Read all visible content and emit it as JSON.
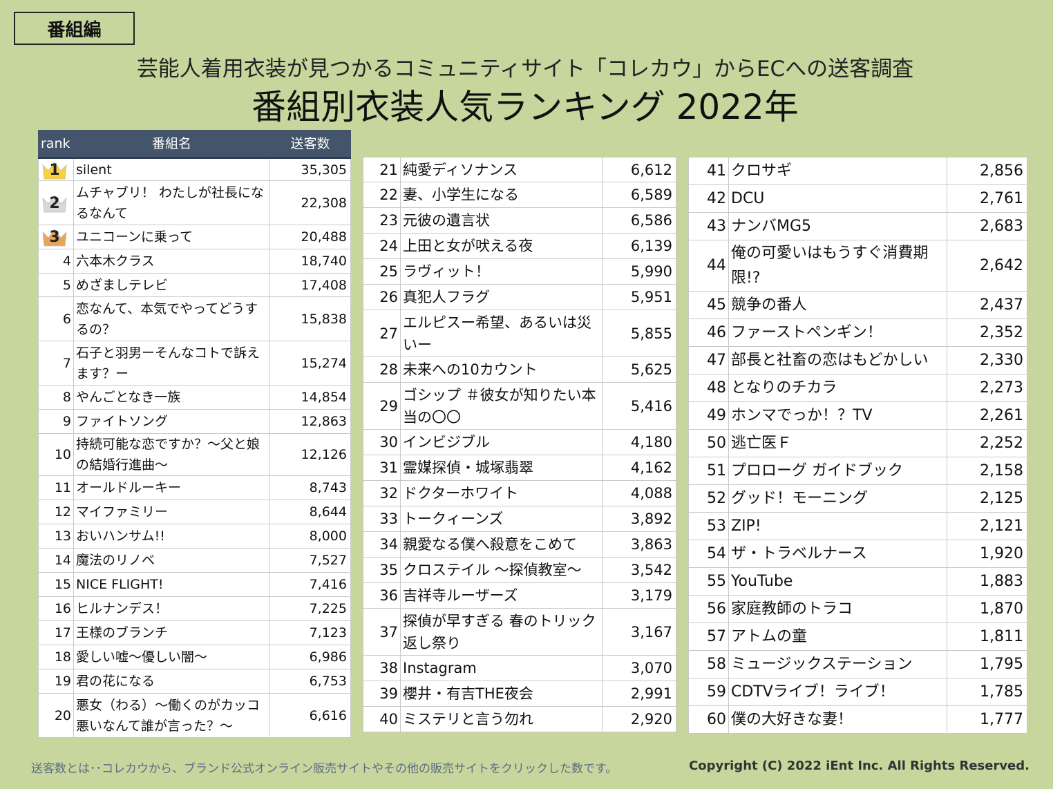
{
  "tag": "番組編",
  "subtitle": "芸能人着用衣装が見つかるコミュニティサイト「コレカウ」からECへの送客調査",
  "title": "番組別衣装人気ランキング 2022年",
  "headers": {
    "rank": "rank",
    "name": "番組名",
    "count": "送客数"
  },
  "medal_colors": {
    "gold": "#f7d23e",
    "silver": "#d8d8d8",
    "bronze": "#e9a45b"
  },
  "col1": [
    {
      "rank": "1",
      "name": "silent",
      "count": "35,305",
      "medal": "gold"
    },
    {
      "rank": "2",
      "name": "ムチャブリ！ わたしが社長になるなんて",
      "count": "22,308",
      "medal": "silver"
    },
    {
      "rank": "3",
      "name": "ユニコーンに乗って",
      "count": "20,488",
      "medal": "bronze"
    },
    {
      "rank": "4",
      "name": "六本木クラス",
      "count": "18,740"
    },
    {
      "rank": "5",
      "name": "めざましテレビ",
      "count": "17,408"
    },
    {
      "rank": "6",
      "name": "恋なんて、本気でやってどうするの？",
      "count": "15,838"
    },
    {
      "rank": "7",
      "name": "石子と羽男ーそんなコトで訴えます？ー",
      "count": "15,274"
    },
    {
      "rank": "8",
      "name": "やんごとなき一族",
      "count": "14,854"
    },
    {
      "rank": "9",
      "name": "ファイトソング",
      "count": "12,863"
    },
    {
      "rank": "10",
      "name": "持続可能な恋ですか？～父と娘の結婚行進曲～",
      "count": "12,126"
    },
    {
      "rank": "11",
      "name": "オールドルーキー",
      "count": "8,743"
    },
    {
      "rank": "12",
      "name": "マイファミリー",
      "count": "8,644"
    },
    {
      "rank": "13",
      "name": "おいハンサム!!",
      "count": "8,000"
    },
    {
      "rank": "14",
      "name": "魔法のリノベ",
      "count": "7,527"
    },
    {
      "rank": "15",
      "name": "NICE FLIGHT!",
      "count": "7,416"
    },
    {
      "rank": "16",
      "name": "ヒルナンデス！",
      "count": "7,225"
    },
    {
      "rank": "17",
      "name": "王様のブランチ",
      "count": "7,123"
    },
    {
      "rank": "18",
      "name": "愛しい嘘～優しい闇～",
      "count": "6,986"
    },
    {
      "rank": "19",
      "name": "君の花になる",
      "count": "6,753"
    },
    {
      "rank": "20",
      "name": "悪女（わる）～働くのがカッコ悪いなんて誰が言った？～",
      "count": "6,616"
    }
  ],
  "col2": [
    {
      "rank": "21",
      "name": "純愛ディソナンス",
      "count": "6,612"
    },
    {
      "rank": "22",
      "name": "妻、小学生になる",
      "count": "6,589"
    },
    {
      "rank": "23",
      "name": "元彼の遺言状",
      "count": "6,586"
    },
    {
      "rank": "24",
      "name": "上田と女が吠える夜",
      "count": "6,139"
    },
    {
      "rank": "25",
      "name": "ラヴィット！",
      "count": "5,990"
    },
    {
      "rank": "26",
      "name": "真犯人フラグ",
      "count": "5,951"
    },
    {
      "rank": "27",
      "name": "エルピスー希望、あるいは災いー",
      "count": "5,855"
    },
    {
      "rank": "28",
      "name": "未来への10カウント",
      "count": "5,625"
    },
    {
      "rank": "29",
      "name": "ゴシップ ＃彼女が知りたい本当の〇〇",
      "count": "5,416"
    },
    {
      "rank": "30",
      "name": "インビジブル",
      "count": "4,180"
    },
    {
      "rank": "31",
      "name": "霊媒探偵・城塚翡翠",
      "count": "4,162"
    },
    {
      "rank": "32",
      "name": "ドクターホワイト",
      "count": "4,088"
    },
    {
      "rank": "33",
      "name": "トークィーンズ",
      "count": "3,892"
    },
    {
      "rank": "34",
      "name": "親愛なる僕へ殺意をこめて",
      "count": "3,863"
    },
    {
      "rank": "35",
      "name": "クロステイル ～探偵教室～",
      "count": "3,542"
    },
    {
      "rank": "36",
      "name": "吉祥寺ルーザーズ",
      "count": "3,179"
    },
    {
      "rank": "37",
      "name": "探偵が早すぎる 春のトリック返し祭り",
      "count": "3,167"
    },
    {
      "rank": "38",
      "name": "Instagram",
      "count": "3,070"
    },
    {
      "rank": "39",
      "name": "櫻井・有吉THE夜会",
      "count": "2,991"
    },
    {
      "rank": "40",
      "name": "ミステリと言う勿れ",
      "count": "2,920"
    }
  ],
  "col3": [
    {
      "rank": "41",
      "name": "クロサギ",
      "count": "2,856"
    },
    {
      "rank": "42",
      "name": "DCU",
      "count": "2,761"
    },
    {
      "rank": "43",
      "name": "ナンバMG5",
      "count": "2,683"
    },
    {
      "rank": "44",
      "name": "俺の可愛いはもうすぐ消費期限!?",
      "count": "2,642"
    },
    {
      "rank": "45",
      "name": "競争の番人",
      "count": "2,437"
    },
    {
      "rank": "46",
      "name": "ファーストペンギン！",
      "count": "2,352"
    },
    {
      "rank": "47",
      "name": "部長と社畜の恋はもどかしい",
      "count": "2,330"
    },
    {
      "rank": "48",
      "name": "となりのチカラ",
      "count": "2,273"
    },
    {
      "rank": "49",
      "name": "ホンマでっか！？TV",
      "count": "2,261"
    },
    {
      "rank": "50",
      "name": "逃亡医Ｆ",
      "count": "2,252"
    },
    {
      "rank": "51",
      "name": "プロローグ ガイドブック",
      "count": "2,158"
    },
    {
      "rank": "52",
      "name": "グッド！モーニング",
      "count": "2,125"
    },
    {
      "rank": "53",
      "name": "ZIP!",
      "count": "2,121"
    },
    {
      "rank": "54",
      "name": "ザ・トラベルナース",
      "count": "1,920"
    },
    {
      "rank": "55",
      "name": "YouTube",
      "count": "1,883"
    },
    {
      "rank": "56",
      "name": "家庭教師のトラコ",
      "count": "1,870"
    },
    {
      "rank": "57",
      "name": "アトムの童",
      "count": "1,811"
    },
    {
      "rank": "58",
      "name": "ミュージックステーション",
      "count": "1,795"
    },
    {
      "rank": "59",
      "name": "CDTVライブ！ライブ！",
      "count": "1,785"
    },
    {
      "rank": "60",
      "name": "僕の大好きな妻！",
      "count": "1,777"
    }
  ],
  "footnote": "送客数とは･･コレカウから、ブランド公式オンライン販売サイトやその他の販売サイトをクリックした数です。",
  "copyright": "Copyright (C) 2022 iEnt Inc. All Rights Reserved."
}
